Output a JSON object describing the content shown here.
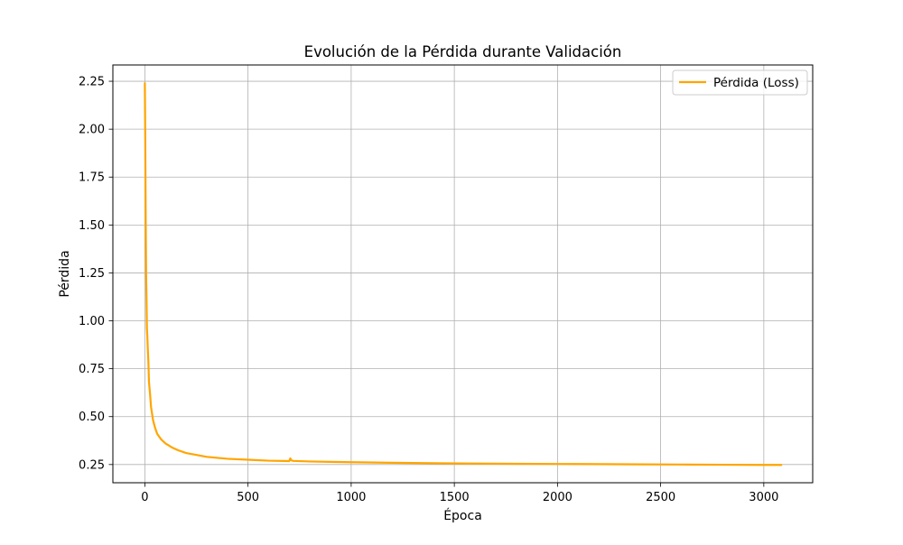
{
  "chart_data": {
    "type": "line",
    "title": "Evolución de la Pérdida durante Validación",
    "xlabel": "Época",
    "ylabel": "Pérdida",
    "xlim": [
      -155,
      3237
    ],
    "ylim": [
      0.155,
      2.335
    ],
    "xticks": [
      0,
      500,
      1000,
      1500,
      2000,
      2500,
      3000
    ],
    "xtick_labels": [
      "0",
      "500",
      "1000",
      "1500",
      "2000",
      "2500",
      "3000"
    ],
    "yticks": [
      0.25,
      0.5,
      0.75,
      1.0,
      1.25,
      1.5,
      1.75,
      2.0,
      2.25
    ],
    "ytick_labels": [
      "0.25",
      "0.50",
      "0.75",
      "1.00",
      "1.25",
      "1.50",
      "1.75",
      "2.00",
      "2.25"
    ],
    "grid": true,
    "legend_position": "top-right",
    "series": [
      {
        "name": "Pérdida (Loss)",
        "color": "#ffa500",
        "x": [
          0,
          2,
          4,
          6,
          8,
          10,
          12,
          14,
          17,
          20,
          25,
          30,
          40,
          50,
          60,
          80,
          100,
          130,
          160,
          200,
          250,
          300,
          400,
          500,
          600,
          700,
          705,
          710,
          720,
          800,
          900,
          1000,
          1200,
          1400,
          1600,
          1800,
          2000,
          2200,
          2400,
          2600,
          2800,
          3000,
          3085
        ],
        "values": [
          2.24,
          1.95,
          1.55,
          1.25,
          1.13,
          0.96,
          0.92,
          0.86,
          0.79,
          0.68,
          0.62,
          0.55,
          0.48,
          0.44,
          0.41,
          0.38,
          0.36,
          0.34,
          0.325,
          0.31,
          0.3,
          0.29,
          0.28,
          0.275,
          0.27,
          0.268,
          0.282,
          0.272,
          0.269,
          0.266,
          0.264,
          0.262,
          0.259,
          0.257,
          0.255,
          0.254,
          0.253,
          0.252,
          0.251,
          0.25,
          0.249,
          0.248,
          0.248
        ]
      }
    ]
  }
}
